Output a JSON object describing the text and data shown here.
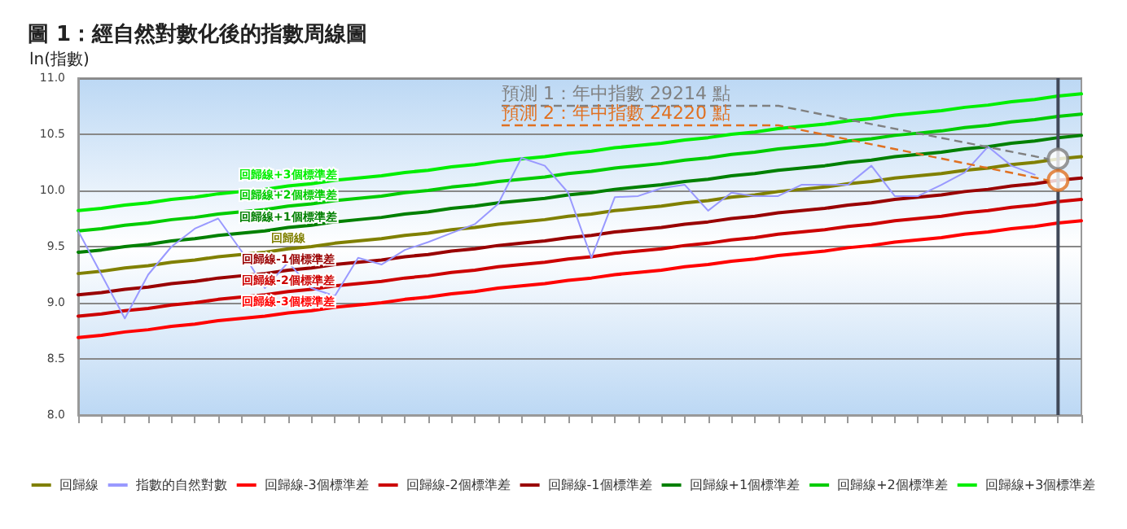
{
  "chart_data": {
    "type": "line",
    "title": "圖 1：經自然對數化後的指數周線圖",
    "ylabel": "ln(指數)",
    "categories": [
      null,
      null,
      null,
      null,
      null,
      null,
      null,
      null,
      null,
      null,
      null,
      null,
      null,
      null,
      null,
      null,
      null,
      null,
      null,
      null,
      null,
      null,
      null,
      null,
      null,
      null,
      null,
      null,
      null,
      null,
      null,
      null,
      null,
      null,
      null,
      null,
      null,
      null,
      null,
      null,
      null,
      null,
      null,
      null
    ],
    "ylim": [
      8,
      11
    ],
    "yticks": [
      {
        "value": 8,
        "label": "8.0"
      },
      {
        "value": 8.5,
        "label": "8.5"
      },
      {
        "value": 9,
        "label": "9.0"
      },
      {
        "value": 9.5,
        "label": "9.5"
      },
      {
        "value": 10,
        "label": "10.0"
      },
      {
        "value": 10.5,
        "label": "10.5"
      },
      {
        "value": 11,
        "label": "11.0"
      }
    ],
    "tick_labels": "y",
    "grid": "y",
    "legend": "bottom",
    "marker": "none",
    "line_style": "solid",
    "series": [
      {
        "name": "回歸線",
        "color": "#808000",
        "values": [
          9.26,
          9.28,
          9.31,
          9.33,
          9.36,
          9.38,
          9.41,
          9.43,
          9.45,
          9.48,
          9.5,
          9.53,
          9.55,
          9.57,
          9.6,
          9.62,
          9.65,
          9.67,
          9.7,
          9.72,
          9.74,
          9.77,
          9.79,
          9.82,
          9.84,
          9.86,
          9.89,
          9.91,
          9.94,
          9.96,
          9.99,
          10.01,
          10.03,
          10.06,
          10.08,
          10.11,
          10.13,
          10.15,
          10.18,
          10.2,
          10.23,
          10.25,
          10.28,
          10.3
        ]
      },
      {
        "name": "指數的自然對數",
        "color": "#9999ff",
        "values": [
          9.64,
          9.25,
          8.86,
          9.25,
          9.5,
          9.66,
          9.75,
          9.46,
          9.13,
          9.36,
          9.13,
          9.06,
          9.4,
          9.34,
          9.47,
          9.54,
          9.62,
          9.7,
          9.88,
          10.29,
          10.22,
          9.98,
          9.4,
          9.94,
          9.95,
          10.02,
          10.05,
          9.82,
          9.98,
          9.95,
          9.95,
          10.05,
          10.05,
          10.05,
          10.22,
          9.95,
          9.95,
          10.05,
          10.16,
          10.39,
          10.22,
          10.14,
          null,
          null
        ]
      },
      {
        "name": "回歸線-3個標準差",
        "color": "#ff0000",
        "values": [
          8.69,
          8.71,
          8.74,
          8.76,
          8.79,
          8.81,
          8.84,
          8.86,
          8.88,
          8.91,
          8.93,
          8.96,
          8.98,
          9,
          9.03,
          9.05,
          9.08,
          9.1,
          9.13,
          9.15,
          9.17,
          9.2,
          9.22,
          9.25,
          9.27,
          9.29,
          9.32,
          9.34,
          9.37,
          9.39,
          9.42,
          9.44,
          9.46,
          9.49,
          9.51,
          9.54,
          9.56,
          9.58,
          9.61,
          9.63,
          9.66,
          9.68,
          9.71,
          9.73
        ]
      },
      {
        "name": "回歸線-2個標準差",
        "color": "#cc0000",
        "values": [
          8.88,
          8.9,
          8.93,
          8.95,
          8.98,
          9,
          9.03,
          9.05,
          9.07,
          9.1,
          9.12,
          9.15,
          9.17,
          9.19,
          9.22,
          9.24,
          9.27,
          9.29,
          9.32,
          9.34,
          9.36,
          9.39,
          9.41,
          9.44,
          9.46,
          9.48,
          9.51,
          9.53,
          9.56,
          9.58,
          9.61,
          9.63,
          9.65,
          9.68,
          9.7,
          9.73,
          9.75,
          9.77,
          9.8,
          9.82,
          9.85,
          9.87,
          9.9,
          9.92
        ]
      },
      {
        "name": "回歸線-1個標準差",
        "color": "#990000",
        "values": [
          9.07,
          9.09,
          9.12,
          9.14,
          9.17,
          9.19,
          9.22,
          9.24,
          9.26,
          9.29,
          9.31,
          9.34,
          9.36,
          9.38,
          9.41,
          9.43,
          9.46,
          9.48,
          9.51,
          9.53,
          9.55,
          9.58,
          9.6,
          9.63,
          9.65,
          9.67,
          9.7,
          9.72,
          9.75,
          9.77,
          9.8,
          9.82,
          9.84,
          9.87,
          9.89,
          9.92,
          9.94,
          9.96,
          9.99,
          10.01,
          10.04,
          10.06,
          10.09,
          10.11
        ]
      },
      {
        "name": "回歸線+1個標準差",
        "color": "#008000",
        "values": [
          9.45,
          9.47,
          9.5,
          9.52,
          9.55,
          9.57,
          9.6,
          9.62,
          9.64,
          9.67,
          9.69,
          9.72,
          9.74,
          9.76,
          9.79,
          9.81,
          9.84,
          9.86,
          9.89,
          9.91,
          9.93,
          9.96,
          9.98,
          10.01,
          10.03,
          10.05,
          10.08,
          10.1,
          10.13,
          10.15,
          10.18,
          10.2,
          10.22,
          10.25,
          10.27,
          10.3,
          10.32,
          10.34,
          10.37,
          10.39,
          10.42,
          10.44,
          10.47,
          10.49
        ]
      },
      {
        "name": "回歸線+2個標準差",
        "color": "#00cc00",
        "values": [
          9.64,
          9.66,
          9.69,
          9.71,
          9.74,
          9.76,
          9.79,
          9.81,
          9.83,
          9.86,
          9.88,
          9.91,
          9.93,
          9.95,
          9.98,
          10,
          10.03,
          10.05,
          10.08,
          10.1,
          10.12,
          10.15,
          10.17,
          10.2,
          10.22,
          10.24,
          10.27,
          10.29,
          10.32,
          10.34,
          10.37,
          10.39,
          10.41,
          10.44,
          10.46,
          10.49,
          10.51,
          10.53,
          10.56,
          10.58,
          10.61,
          10.63,
          10.66,
          10.68
        ]
      },
      {
        "name": "回歸線+3個標準差",
        "color": "#00ee00",
        "values": [
          9.82,
          9.84,
          9.87,
          9.89,
          9.92,
          9.94,
          9.97,
          9.99,
          10.01,
          10.04,
          10.06,
          10.09,
          10.11,
          10.13,
          10.16,
          10.18,
          10.21,
          10.23,
          10.26,
          10.28,
          10.3,
          10.33,
          10.35,
          10.38,
          10.4,
          10.42,
          10.45,
          10.47,
          10.5,
          10.52,
          10.55,
          10.57,
          10.59,
          10.62,
          10.64,
          10.67,
          10.69,
          10.71,
          10.74,
          10.76,
          10.79,
          10.81,
          10.84,
          10.86
        ]
      },
      {
        "type": "scatter",
        "marker": "circle",
        "color": "#808080",
        "values": [
          null,
          null,
          null,
          null,
          null,
          null,
          null,
          null,
          null,
          null,
          null,
          null,
          null,
          null,
          null,
          null,
          null,
          null,
          null,
          null,
          null,
          null,
          null,
          null,
          null,
          null,
          null,
          null,
          null,
          null,
          null,
          null,
          null,
          null,
          null,
          null,
          null,
          null,
          null,
          null,
          null,
          null,
          10.28,
          null
        ]
      },
      {
        "type": "scatter",
        "marker": "circle",
        "color": "#e07020",
        "values": [
          null,
          null,
          null,
          null,
          null,
          null,
          null,
          null,
          null,
          null,
          null,
          null,
          null,
          null,
          null,
          null,
          null,
          null,
          null,
          null,
          null,
          null,
          null,
          null,
          null,
          null,
          null,
          null,
          null,
          null,
          null,
          null,
          null,
          null,
          null,
          null,
          null,
          null,
          null,
          null,
          null,
          null,
          10.09,
          null
        ]
      }
    ],
    "annotations": [
      "預測 1：年中指數 29214 點",
      "預測 2：年中指數 24220 點"
    ]
  }
}
